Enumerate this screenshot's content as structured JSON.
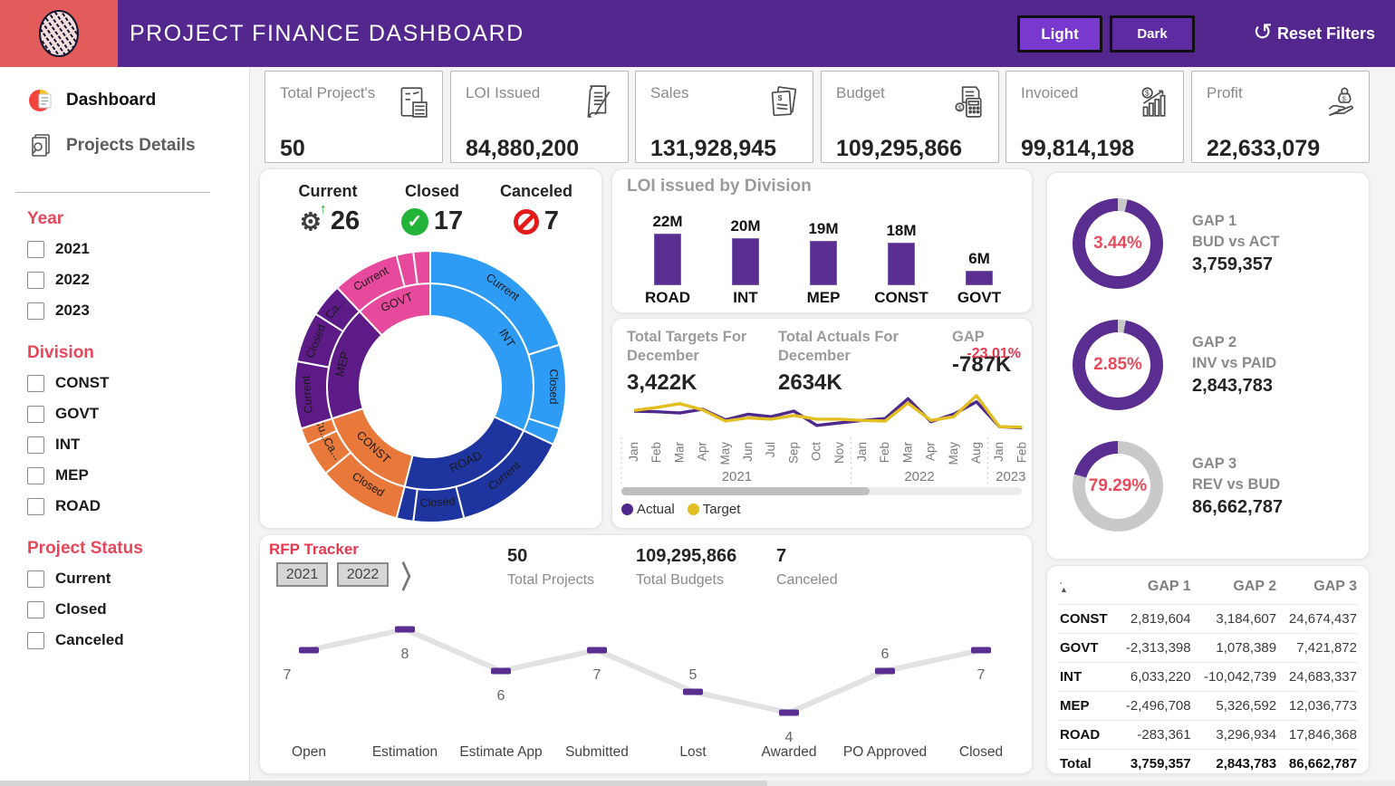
{
  "theme": {
    "header_purple": "#54278F",
    "accent_purple": "#5A2D91",
    "accent_red": "#E8475A",
    "gauge_gray": "#C9C9C9",
    "actual_color": "#4F2A8C",
    "target_color": "#E2BE20"
  },
  "header": {
    "title": "PROJECT FINANCE DASHBOARD",
    "light_label": "Light",
    "dark_label": "Dark",
    "reset_label": "Reset Filters",
    "reset_icon": "↺"
  },
  "sidebar": {
    "nav": [
      {
        "label": "Dashboard",
        "icon": "dashboard-pie-icon"
      },
      {
        "label": "Projects Details",
        "icon": "doc-search-icon"
      }
    ],
    "filters": [
      {
        "title": "Year",
        "options": [
          "2021",
          "2022",
          "2023"
        ]
      },
      {
        "title": "Division",
        "options": [
          "CONST",
          "GOVT",
          "INT",
          "MEP",
          "ROAD"
        ]
      },
      {
        "title": "Project Status",
        "options": [
          "Current",
          "Closed",
          "Canceled"
        ]
      }
    ]
  },
  "kpis": [
    {
      "label": "Total Project's",
      "value": "50",
      "icon": "checklist-icon"
    },
    {
      "label": "LOI Issued",
      "value": "84,880,200",
      "icon": "doc-pen-icon"
    },
    {
      "label": "Sales",
      "value": "131,928,945",
      "icon": "dollar-doc-icon"
    },
    {
      "label": "Budget",
      "value": "109,295,866",
      "icon": "calculator-icon"
    },
    {
      "label": "Invoiced",
      "value": "99,814,198",
      "icon": "chart-up-icon"
    },
    {
      "label": "Profit",
      "value": "22,633,079",
      "icon": "hand-money-icon"
    }
  ],
  "status_summary": [
    {
      "label": "Current",
      "value": "26",
      "icon": "gears-icon"
    },
    {
      "label": "Closed",
      "value": "17",
      "icon": "check-icon"
    },
    {
      "label": "Canceled",
      "value": "7",
      "icon": "cancel-icon"
    }
  ],
  "chart_data": {
    "sunburst": {
      "type": "sunburst",
      "total": 50,
      "divisions": [
        {
          "name": "INT",
          "color": "#2E9BF5",
          "segments": [
            {
              "status": "Current",
              "value": 10,
              "label": "Current"
            },
            {
              "status": "Closed",
              "value": 5,
              "label": "Closed"
            },
            {
              "status": "Canceled",
              "value": 1,
              "label": ""
            }
          ]
        },
        {
          "name": "ROAD",
          "color": "#1E35A0",
          "segments": [
            {
              "status": "Current",
              "value": 7,
              "label": "Current"
            },
            {
              "status": "Closed",
              "value": 3,
              "label": "Closed"
            },
            {
              "status": "Canceled",
              "value": 1,
              "label": ""
            }
          ]
        },
        {
          "name": "CONST",
          "color": "#E8793A",
          "segments": [
            {
              "status": "Closed",
              "value": 5,
              "label": "Closed"
            },
            {
              "status": "Canceled",
              "value": 2,
              "label": "Ca..."
            },
            {
              "status": "Current",
              "value": 1,
              "label": "Cu..."
            }
          ]
        },
        {
          "name": "MEP",
          "color": "#5C1B87",
          "segments": [
            {
              "status": "Current",
              "value": 4,
              "label": "Current"
            },
            {
              "status": "Closed",
              "value": 3,
              "label": "Closed"
            },
            {
              "status": "Canceled",
              "value": 2,
              "label": "Ca..."
            }
          ]
        },
        {
          "name": "GOVT",
          "color": "#E7499C",
          "segments": [
            {
              "status": "Current",
              "value": 4,
              "label": "Current"
            },
            {
              "status": "Closed",
              "value": 1,
              "label": ""
            },
            {
              "status": "Canceled",
              "value": 1,
              "label": ""
            }
          ]
        }
      ]
    },
    "loi_by_division": {
      "type": "bar",
      "title": "LOI issued by Division",
      "categories": [
        "ROAD",
        "INT",
        "MEP",
        "CONST",
        "GOVT"
      ],
      "values": [
        22,
        20,
        19,
        18,
        6
      ],
      "value_labels": [
        "22M",
        "20M",
        "19M",
        "18M",
        "6M"
      ],
      "bar_color": "#5A2D91"
    },
    "targets_vs_actuals": {
      "type": "line",
      "stats": [
        {
          "label": "Total Targets For December",
          "value": "3,422K"
        },
        {
          "label": "Total Actuals For December",
          "value": "2634K"
        },
        {
          "label": "GAP",
          "value": "-787K",
          "pct": "-23.01%"
        }
      ],
      "months": [
        "Jan",
        "Feb",
        "Mar",
        "Apr",
        "May",
        "Jun",
        "Jul",
        "Sep",
        "Oct",
        "Nov",
        "Jan",
        "Feb",
        "Mar",
        "Apr",
        "May",
        "Aug",
        "Jan",
        "Feb"
      ],
      "year_groups": [
        {
          "year": "2021",
          "count": 10
        },
        {
          "year": "2022",
          "count": 6
        },
        {
          "year": "2023",
          "count": 2
        }
      ],
      "series": [
        {
          "name": "Actual",
          "color": "#4F2A8C",
          "values": [
            55,
            54,
            52,
            58,
            41,
            50,
            46,
            55,
            32,
            36,
            40,
            43,
            75,
            38,
            50,
            70,
            30,
            28
          ]
        },
        {
          "name": "Target",
          "color": "#E2BE20",
          "values": [
            56,
            61,
            67,
            57,
            39,
            44,
            42,
            48,
            42,
            42,
            40,
            39,
            68,
            40,
            46,
            80,
            30,
            29
          ]
        }
      ]
    },
    "rfp_tracker": {
      "type": "line",
      "title": "RFP Tracker",
      "year_buttons": [
        "2021",
        "2022"
      ],
      "stats": [
        {
          "value": "50",
          "label": "Total Projects"
        },
        {
          "value": "109,295,866",
          "label": "Total Budgets"
        },
        {
          "value": "7",
          "label": "Canceled"
        }
      ],
      "categories": [
        "Open",
        "Estimation",
        "Estimate App",
        "Submitted",
        "Lost",
        "Awarded",
        "PO Approved",
        "Closed"
      ],
      "values": [
        7,
        8,
        6,
        7,
        5,
        4,
        6,
        7
      ],
      "label_pos": [
        "below",
        "below",
        "below",
        "below",
        "above",
        "below",
        "above",
        "below"
      ],
      "marker_color": "#5A2D91",
      "line_color": "#e2e2e2"
    }
  },
  "gauges": [
    {
      "name": "GAP 1",
      "compare": "BUD vs ACT",
      "value": "3,759,357",
      "pct_label": "3.44%",
      "pct": 3.44
    },
    {
      "name": "GAP 2",
      "compare": "INV vs PAID",
      "value": "2,843,783",
      "pct_label": "2.85%",
      "pct": 2.85
    },
    {
      "name": "GAP 3",
      "compare": "REV vs BUD",
      "value": "86,662,787",
      "pct_label": "79.29%",
      "pct": 79.29
    }
  ],
  "gap_table": {
    "sort_icon": "▲",
    "columns": [
      "",
      "GAP 1",
      "GAP 2",
      "GAP 3"
    ],
    "rows": [
      [
        "CONST",
        "2,819,604",
        "3,184,607",
        "24,674,437"
      ],
      [
        "GOVT",
        "-2,313,398",
        "1,078,389",
        "7,421,872"
      ],
      [
        "INT",
        "6,033,220",
        "-10,042,739",
        "24,683,337"
      ],
      [
        "MEP",
        "-2,496,708",
        "5,326,592",
        "12,036,773"
      ],
      [
        "ROAD",
        "-283,361",
        "3,296,934",
        "17,846,368"
      ]
    ],
    "total_row": [
      "Total",
      "3,759,357",
      "2,843,783",
      "86,662,787"
    ]
  }
}
